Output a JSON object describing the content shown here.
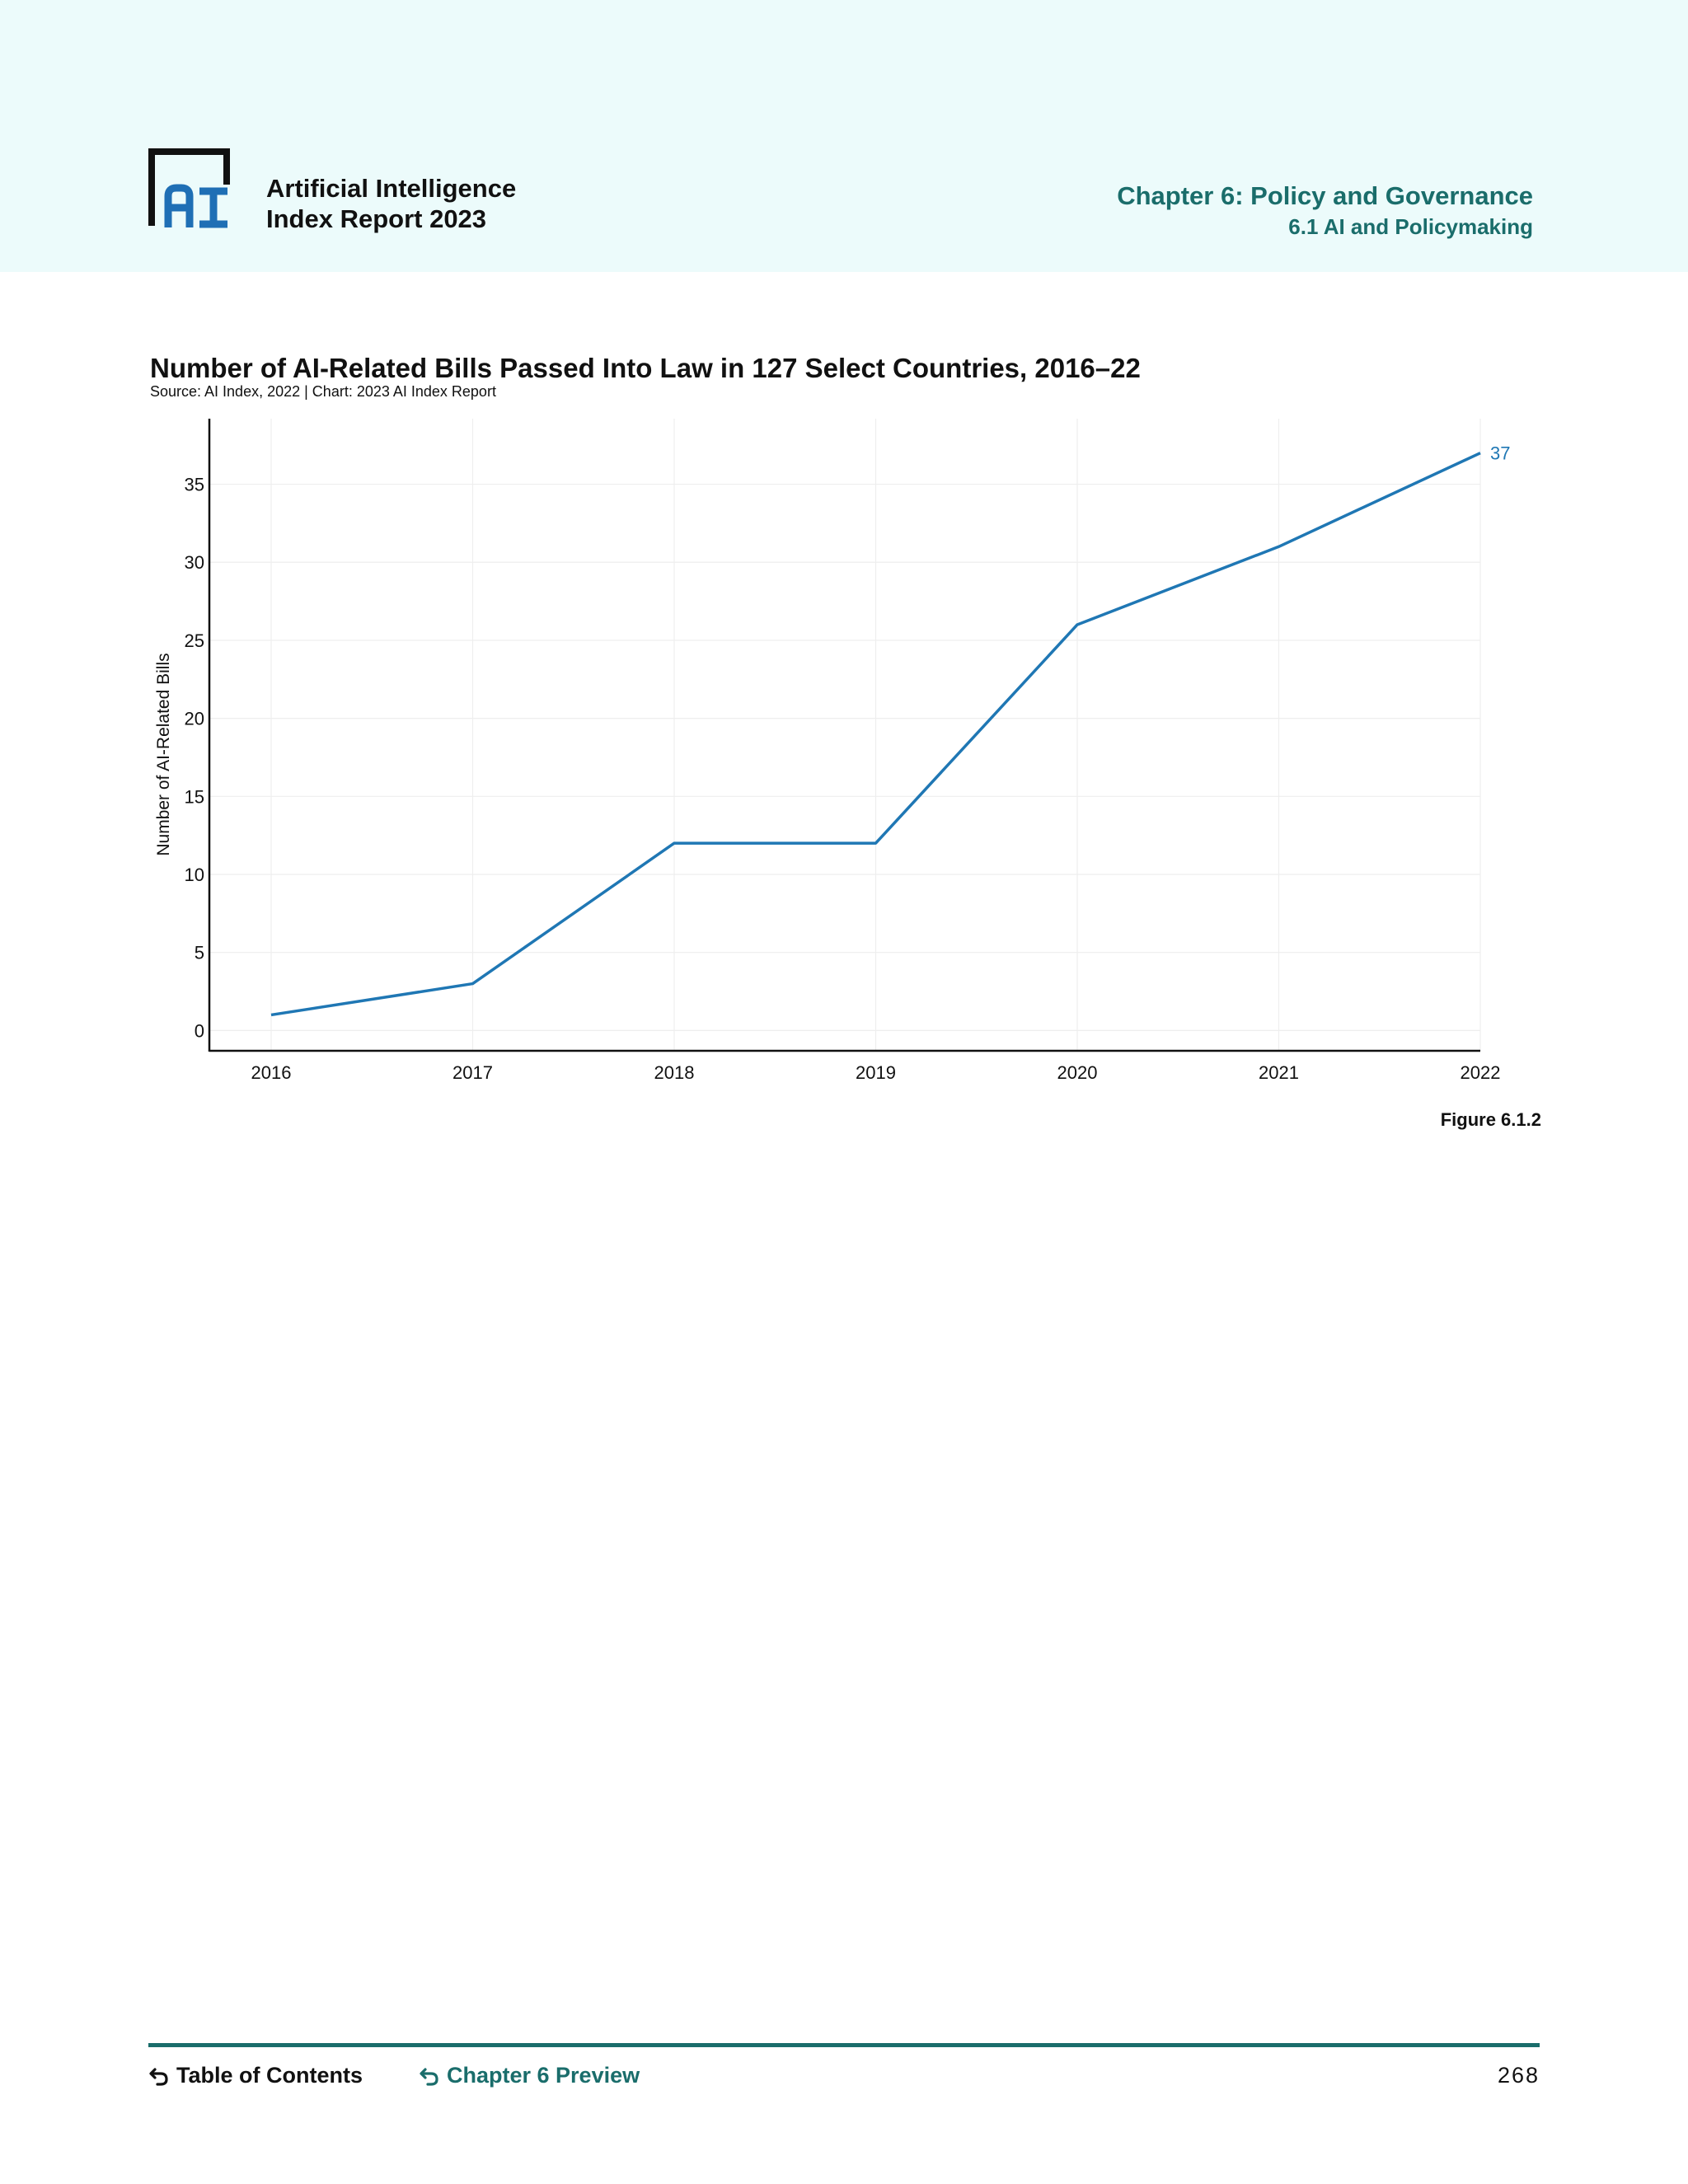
{
  "header": {
    "brand_line1": "Artificial Intelligence",
    "brand_line2": "Index Report 2023",
    "chapter_title": "Chapter 6: Policy and Governance",
    "chapter_section": "6.1 AI and Policymaking"
  },
  "figure_label": "Figure 6.1.2",
  "footer": {
    "toc_label": "Table of Contents",
    "preview_label": "Chapter 6 Preview",
    "page_number": "268"
  },
  "colors": {
    "header_band": "#ecfbfb",
    "accent": "#1a6d6b",
    "series": "#1f77b4",
    "logo_blue": "#1f6fb5"
  },
  "chart_data": {
    "type": "line",
    "title": "Number of AI-Related Bills Passed Into Law in 127 Select Countries, 2016–22",
    "subtitle": "Source: AI Index, 2022 | Chart: 2023 AI Index Report",
    "xlabel": "",
    "ylabel": "Number of AI-Related Bills",
    "x": [
      "2016",
      "2017",
      "2018",
      "2019",
      "2020",
      "2021",
      "2022"
    ],
    "series": [
      {
        "values": [
          1,
          3,
          12,
          12,
          26,
          31,
          37
        ]
      }
    ],
    "end_label": "37",
    "yticks": [
      0,
      5,
      10,
      15,
      20,
      25,
      30,
      35
    ],
    "ylim": [
      -1.3,
      39.2
    ],
    "grid": true,
    "legend": "none"
  }
}
